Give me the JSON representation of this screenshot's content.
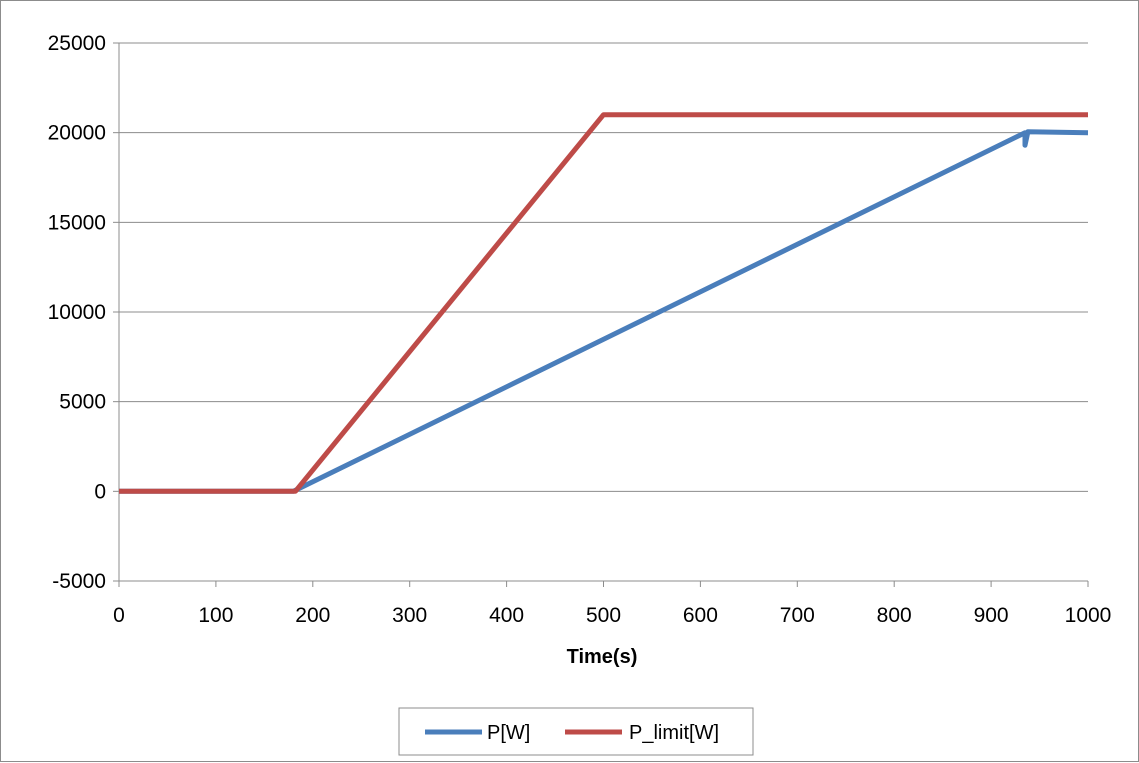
{
  "chart_data": {
    "type": "line",
    "title": "",
    "xlabel": "Time(s)",
    "ylabel": "",
    "xlim": [
      0,
      1000
    ],
    "ylim": [
      -5000,
      25000
    ],
    "x_ticks": [
      0,
      100,
      200,
      300,
      400,
      500,
      600,
      700,
      800,
      900,
      1000
    ],
    "y_ticks": [
      -5000,
      0,
      5000,
      10000,
      15000,
      20000,
      25000
    ],
    "grid": "horizontal",
    "legend_position": "bottom",
    "series": [
      {
        "name": "P[W]",
        "color": "#4a7ebb",
        "points": [
          [
            0,
            0
          ],
          [
            180,
            0
          ],
          [
            935,
            20000
          ],
          [
            935,
            19300
          ],
          [
            938,
            20050
          ],
          [
            1000,
            20000
          ]
        ]
      },
      {
        "name": "P_limit[W]",
        "color": "#be4b48",
        "points": [
          [
            0,
            0
          ],
          [
            182,
            0
          ],
          [
            500,
            21000
          ],
          [
            1000,
            21000
          ]
        ]
      }
    ]
  }
}
